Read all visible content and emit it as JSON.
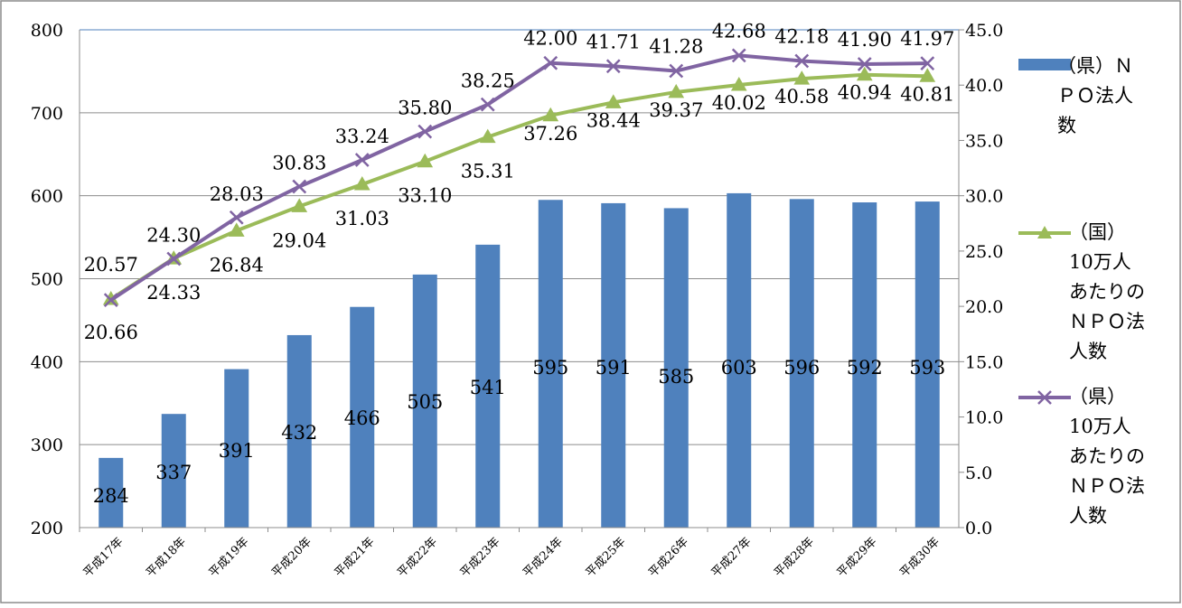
{
  "chart_data": {
    "type": "bar",
    "categories": [
      "平成17年",
      "平成18年",
      "平成19年",
      "平成20年",
      "平成21年",
      "平成22年",
      "平成23年",
      "平成24年",
      "平成25年",
      "平成26年",
      "平成27年",
      "平成28年",
      "平成29年",
      "平成30年"
    ],
    "y_left": {
      "ticks": [
        "800",
        "700",
        "600",
        "500",
        "400",
        "300",
        "200"
      ],
      "ylim": [
        200,
        800
      ]
    },
    "y_right": {
      "ticks": [
        "45.0",
        "40.0",
        "35.0",
        "30.0",
        "25.0",
        "20.0",
        "15.0",
        "10.0",
        "5.0",
        "0.0"
      ],
      "ylim": [
        0,
        45
      ]
    },
    "grid": true,
    "legend_position": "right",
    "series": [
      {
        "name": "（県）ＮＰＯ法人数",
        "name_lines": [
          "（県）Ｎ",
          "ＰＯ法人",
          "数"
        ],
        "type": "bar",
        "axis": "left",
        "color": "#4f81bd",
        "values": [
          284,
          337,
          391,
          432,
          466,
          505,
          541,
          595,
          591,
          585,
          603,
          596,
          592,
          593
        ],
        "labels": [
          "284",
          "337",
          "391",
          "432",
          "466",
          "505",
          "541",
          "595",
          "591",
          "585",
          "603",
          "596",
          "592",
          "593"
        ]
      },
      {
        "name": "（国）10万人あたりのＮＰＯ法人数",
        "name_lines": [
          "（国）",
          "10万人",
          "あたりの",
          "ＮＰＯ法",
          "人数"
        ],
        "type": "line",
        "marker": "triangle",
        "axis": "right",
        "color": "#9bbb59",
        "values": [
          20.66,
          24.33,
          26.84,
          29.04,
          31.03,
          33.1,
          35.31,
          37.26,
          38.44,
          39.37,
          40.02,
          40.58,
          40.94,
          40.81
        ],
        "labels": [
          "20.66",
          "24.33",
          "26.84",
          "29.04",
          "31.03",
          "33.10",
          "35.31",
          "37.26",
          "38.44",
          "39.37",
          "40.02",
          "40.58",
          "40.94",
          "40.81"
        ]
      },
      {
        "name": "（県）10万人あたりのＮＰＯ法人数",
        "name_lines": [
          "（県）",
          "10万人",
          "あたりの",
          "ＮＰＯ法",
          "人数"
        ],
        "type": "line",
        "marker": "x",
        "axis": "right",
        "color": "#8064a2",
        "values": [
          20.57,
          24.3,
          28.03,
          30.83,
          33.24,
          35.8,
          38.25,
          42.0,
          41.71,
          41.28,
          42.68,
          42.18,
          41.9,
          41.97
        ],
        "labels": [
          "20.57",
          "24.30",
          "28.03",
          "30.83",
          "33.24",
          "35.80",
          "38.25",
          "42.00",
          "41.71",
          "41.28",
          "42.68",
          "42.18",
          "41.90",
          "41.97"
        ]
      }
    ]
  }
}
